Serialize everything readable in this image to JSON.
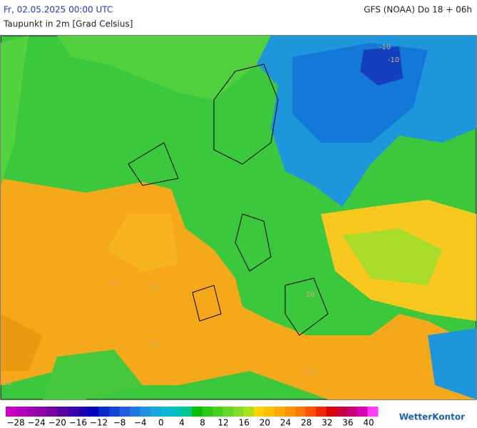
{
  "header": {
    "date": "Fr, 02.05.2025 00:00 UTC",
    "model": "GFS (NOAA) Do 18 + 06h",
    "title": "Taupunkt in 2m [Grad Celsius]"
  },
  "map": {
    "contour_labels": [
      "-10",
      "-10",
      "10",
      "10",
      "10",
      "10",
      "10",
      "10"
    ]
  },
  "legend": {
    "colors": [
      "#c800c8",
      "#b400be",
      "#a000b4",
      "#8c00aa",
      "#7800a0",
      "#5a00a0",
      "#3c00aa",
      "#1e00b4",
      "#0000c0",
      "#0a28cc",
      "#1444d6",
      "#1e5ede",
      "#1e78e2",
      "#1e90e0",
      "#14a8dc",
      "#0ab8d2",
      "#00c0c0",
      "#00c88c",
      "#00c000",
      "#28c814",
      "#46d01e",
      "#64d828",
      "#82dc28",
      "#aae01e",
      "#ffd200",
      "#ffbe00",
      "#ffaa00",
      "#ff9600",
      "#ff7800",
      "#ff5000",
      "#f02800",
      "#dc0000",
      "#c8003c",
      "#c80078",
      "#dc00b4",
      "#ff3cff"
    ],
    "labels": [
      "−28",
      "−24",
      "−20",
      "−16",
      "−12",
      "−8",
      "−4",
      "0",
      "4",
      "8",
      "12",
      "16",
      "20",
      "24",
      "28",
      "32",
      "36",
      "40"
    ]
  },
  "logo": "WetterKontor"
}
